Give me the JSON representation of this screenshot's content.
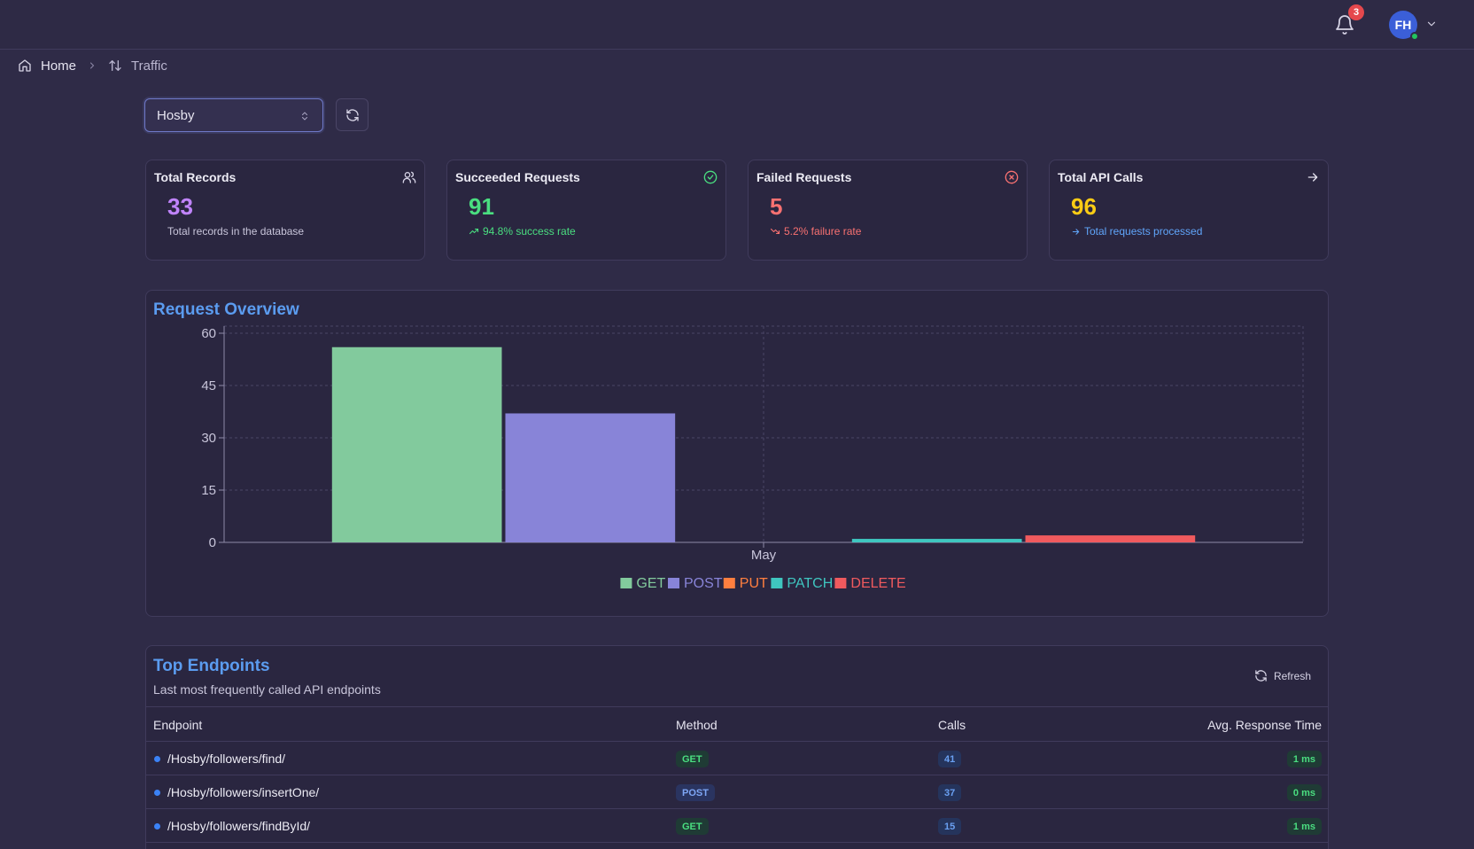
{
  "header": {
    "notification_count": "3",
    "avatar_initials": "FH"
  },
  "breadcrumb": {
    "home": "Home",
    "current": "Traffic"
  },
  "selector": {
    "value": "Hosby"
  },
  "cards": [
    {
      "title": "Total Records",
      "value": "33",
      "sub": "Total records in the database",
      "icon": "users-icon",
      "color": "#c084fc"
    },
    {
      "title": "Succeeded Requests",
      "value": "91",
      "sub": "94.8% success rate",
      "icon": "check-circle-icon",
      "color": "#4ade80"
    },
    {
      "title": "Failed Requests",
      "value": "5",
      "sub": "5.2% failure rate",
      "icon": "x-circle-icon",
      "color": "#f87171"
    },
    {
      "title": "Total API Calls",
      "value": "96",
      "sub": "Total requests processed",
      "icon": "arrow-right-icon",
      "color": "#facc15"
    }
  ],
  "request_overview": {
    "title": "Request Overview"
  },
  "chart_data": {
    "type": "bar",
    "categories": [
      "May"
    ],
    "series": [
      {
        "name": "GET",
        "values": [
          56
        ],
        "color": "#82ca9d"
      },
      {
        "name": "POST",
        "values": [
          37
        ],
        "color": "#8884d8"
      },
      {
        "name": "PUT",
        "values": [
          0
        ],
        "color": "#ff7f3f"
      },
      {
        "name": "PATCH",
        "values": [
          1
        ],
        "color": "#3fc6c0"
      },
      {
        "name": "DELETE",
        "values": [
          2
        ],
        "color": "#f05a5e"
      }
    ],
    "yticks": [
      "0",
      "15",
      "30",
      "45",
      "60"
    ],
    "ylim": [
      0,
      60
    ],
    "grid": true,
    "legend": "bottom"
  },
  "top_endpoints": {
    "title": "Top Endpoints",
    "subtitle": "Last most frequently called API endpoints",
    "refresh_label": "Refresh",
    "columns": [
      "Endpoint",
      "Method",
      "Calls",
      "Avg. Response Time"
    ],
    "rows": [
      {
        "endpoint": "/Hosby/followers/find/",
        "method": "GET",
        "calls": "41",
        "time": "1 ms"
      },
      {
        "endpoint": "/Hosby/followers/insertOne/",
        "method": "POST",
        "calls": "37",
        "time": "0 ms"
      },
      {
        "endpoint": "/Hosby/followers/findById/",
        "method": "GET",
        "calls": "15",
        "time": "1 ms"
      }
    ]
  }
}
